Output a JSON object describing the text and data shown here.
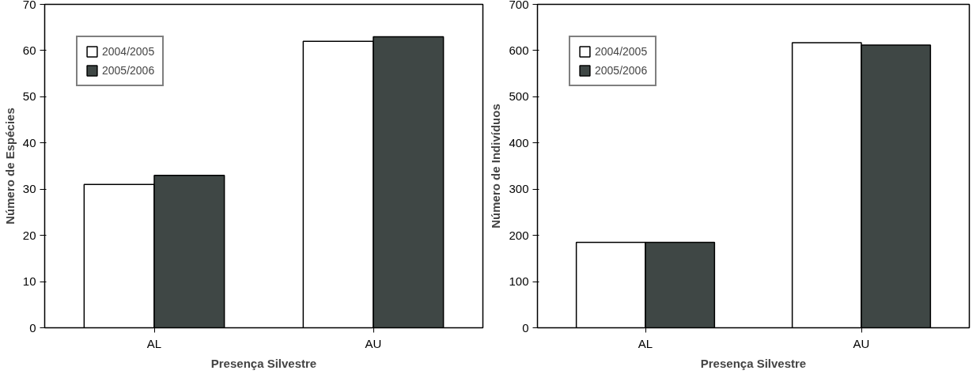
{
  "chart_data": [
    {
      "type": "bar",
      "xlabel": "Presença Silvestre",
      "ylabel": "Número de Espécies",
      "categories": [
        "AL",
        "AU"
      ],
      "series": [
        {
          "name": "2004/2005",
          "color": "#ffffff",
          "values": [
            31,
            62
          ]
        },
        {
          "name": "2005/2006",
          "color": "#3f4745",
          "values": [
            33,
            63
          ]
        }
      ],
      "ylim": [
        0,
        70
      ],
      "yticks": [
        0,
        10,
        20,
        30,
        40,
        50,
        60,
        70
      ],
      "grid": false,
      "legend": "top left"
    },
    {
      "type": "bar",
      "xlabel": "Presença Silvestre",
      "ylabel": "Número de Indivíduos",
      "categories": [
        "AL",
        "AU"
      ],
      "series": [
        {
          "name": "2004/2005",
          "color": "#ffffff",
          "values": [
            185,
            617
          ]
        },
        {
          "name": "2005/2006",
          "color": "#3f4745",
          "values": [
            185,
            612
          ]
        }
      ],
      "ylim": [
        0,
        700
      ],
      "yticks": [
        0,
        100,
        200,
        300,
        400,
        500,
        600,
        700
      ],
      "grid": false,
      "legend": "top left"
    }
  ]
}
